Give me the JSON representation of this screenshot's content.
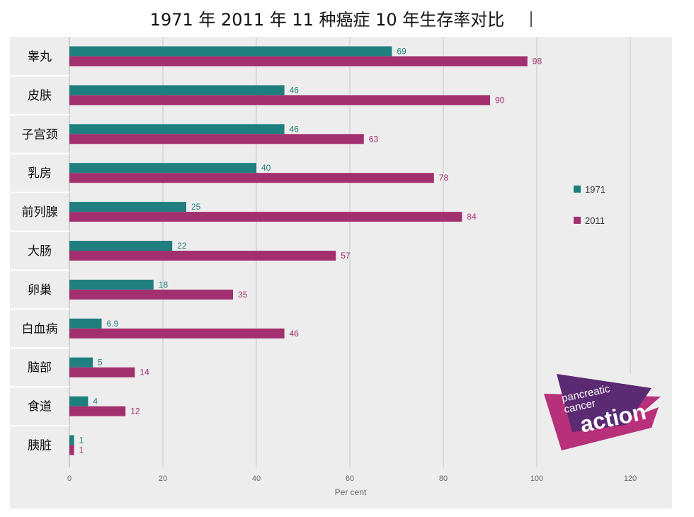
{
  "chart_data": {
    "type": "bar",
    "orientation": "horizontal",
    "title": "1971 年 2011 年  11 种癌症 10 年生存率对比",
    "xlabel": "Per cent",
    "ylabel": "",
    "xlim": [
      0,
      120
    ],
    "xticks": [
      0,
      20,
      40,
      60,
      80,
      100,
      120
    ],
    "categories": [
      "睾丸",
      "皮肤",
      "子宫颈",
      "乳房",
      "前列腺",
      "大肠",
      "卵巢",
      "白血病",
      "脑部",
      "食道",
      "胰脏"
    ],
    "series": [
      {
        "name": "1971",
        "color": "#1f7f7f",
        "values": [
          69,
          46,
          46,
          40,
          25,
          22,
          18,
          6.9,
          5,
          4,
          1
        ]
      },
      {
        "name": "2011",
        "color": "#a3306e",
        "values": [
          98,
          90,
          63,
          78,
          84,
          57,
          35,
          46,
          14,
          12,
          1
        ]
      }
    ],
    "data_labels": [
      [
        "69",
        "46",
        "46",
        "40",
        "25",
        "22",
        "18",
        "6.9",
        "5",
        "4",
        "1"
      ],
      [
        "98",
        "90",
        "63",
        "78",
        "84",
        "57",
        "35",
        "46",
        "14",
        "12",
        "1"
      ]
    ],
    "grid": true,
    "legend_position": "right"
  },
  "logo": {
    "line1": "pancreatic",
    "line2": "cancer",
    "line3": "action",
    "colors": {
      "outer": "#b8307a",
      "inner": "#5a2a72"
    }
  }
}
